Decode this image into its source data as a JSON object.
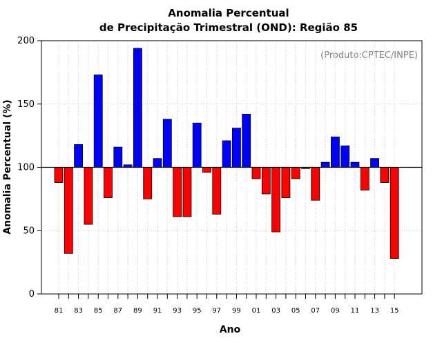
{
  "chart_data": {
    "type": "bar",
    "title": "Anomalia Percentual",
    "subtitle": "de Precipitação Trimestral (OND): Região 85",
    "xlabel": "Ano",
    "ylabel": "Anomalia Percentual (%)",
    "annotation": "(Produto:CPTEC/INPE)",
    "ylim": [
      0,
      200
    ],
    "yticks": [
      0,
      50,
      100,
      150,
      200
    ],
    "baseline": 100,
    "grid": true,
    "colors": {
      "above": "#0000ff",
      "below": "#ff0000",
      "edge": "#000000",
      "grid": "#c8c8c8",
      "credit": "#808080"
    },
    "categories": [
      "81",
      "82",
      "83",
      "84",
      "85",
      "86",
      "87",
      "88",
      "89",
      "90",
      "91",
      "92",
      "93",
      "94",
      "95",
      "96",
      "97",
      "98",
      "99",
      "00",
      "01",
      "02",
      "03",
      "04",
      "05",
      "06",
      "07",
      "08",
      "09",
      "10",
      "11",
      "12",
      "13",
      "14",
      "15"
    ],
    "values": [
      88,
      32,
      118,
      55,
      173,
      76,
      116,
      102,
      194,
      75,
      107,
      138,
      61,
      61,
      135,
      96,
      63,
      121,
      131,
      142,
      91,
      79,
      49,
      76,
      91,
      99,
      74,
      104,
      124,
      117,
      104,
      82,
      107,
      88,
      28
    ],
    "tick_labels": [
      "81",
      "83",
      "85",
      "87",
      "89",
      "91",
      "93",
      "95",
      "97",
      "99",
      "01",
      "03",
      "05",
      "07",
      "09",
      "11",
      "13",
      "15"
    ]
  }
}
